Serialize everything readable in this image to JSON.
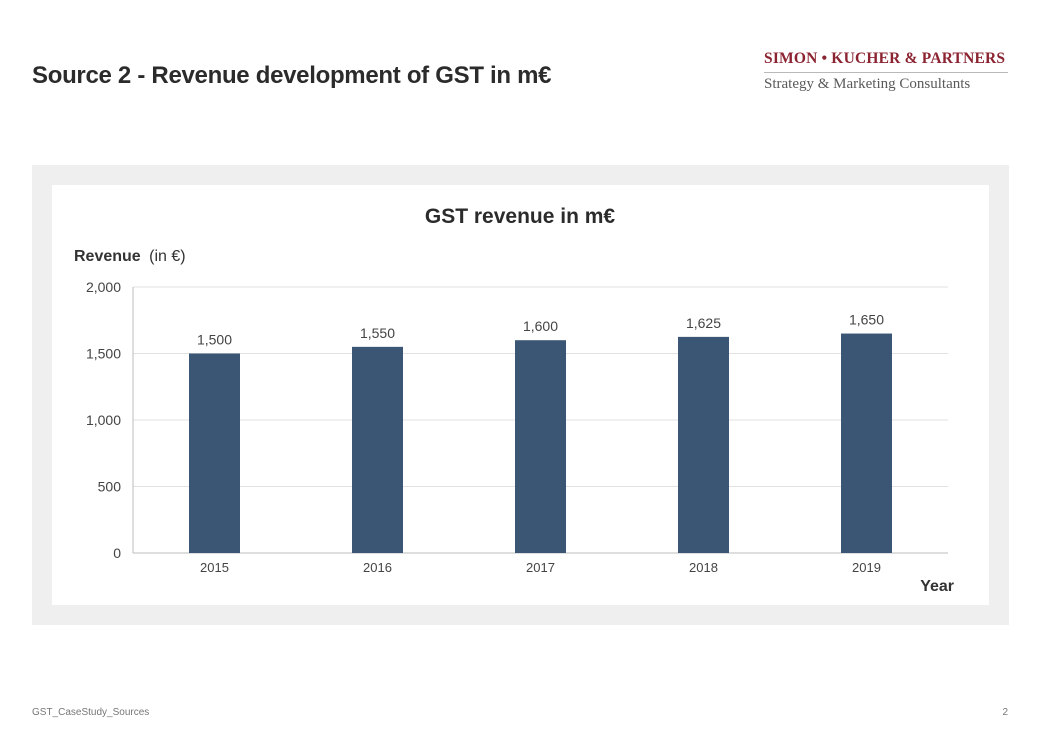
{
  "page": {
    "title": "Source 2 - Revenue development of GST in m€",
    "footer_left": "GST_CaseStudy_Sources",
    "page_number": "2"
  },
  "logo": {
    "main": "SIMON • KUCHER & PARTNERS",
    "sub": "Strategy & Marketing Consultants",
    "brand_color": "#8b2331"
  },
  "chart_data": {
    "type": "bar",
    "title": "GST revenue in m€",
    "ylabel_bold": "Revenue",
    "ylabel_unit": "(in €)",
    "xlabel": "Year",
    "categories": [
      "2015",
      "2016",
      "2017",
      "2018",
      "2019"
    ],
    "values": [
      1500,
      1550,
      1600,
      1625,
      1650
    ],
    "value_labels": [
      "1,500",
      "1,550",
      "1,600",
      "1,625",
      "1,650"
    ],
    "ylim": [
      0,
      2000
    ],
    "yticks": [
      0,
      500,
      1000,
      1500,
      2000
    ],
    "ytick_labels": [
      "0",
      "500",
      "1,000",
      "1,500",
      "2,000"
    ],
    "grid": true,
    "bar_color": "#3a5674"
  }
}
